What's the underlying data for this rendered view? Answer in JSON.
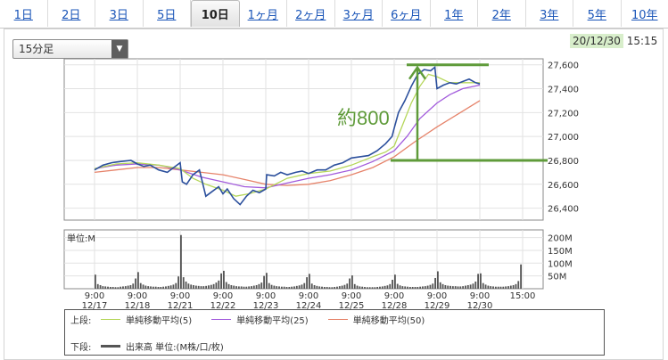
{
  "tabs": [
    {
      "label": "1日"
    },
    {
      "label": "2日"
    },
    {
      "label": "3日"
    },
    {
      "label": "5日"
    },
    {
      "label": "10日"
    },
    {
      "label": "1ヶ月"
    },
    {
      "label": "2ヶ月"
    },
    {
      "label": "3ヶ月"
    },
    {
      "label": "6ヶ月"
    },
    {
      "label": "1年"
    },
    {
      "label": "2年"
    },
    {
      "label": "3年"
    },
    {
      "label": "5年"
    },
    {
      "label": "10年"
    }
  ],
  "active_tab": "10日",
  "interval_select": {
    "value": "15分足"
  },
  "timestamp": {
    "date": "20/12/30",
    "time": "15:15"
  },
  "annotation": {
    "text": "約800",
    "level_low": 26800,
    "level_high": 27600
  },
  "colors": {
    "price": "#2b4f9c",
    "ma5": "#b5d65a",
    "ma25": "#a25bdc",
    "ma50": "#e6836a",
    "volume": "#555555",
    "annotation": "#5f9b3a"
  },
  "legend": {
    "upper_label": "上段:",
    "lower_label": "下段:",
    "items": [
      {
        "label": "単純移動平均(5)",
        "color": "#b5d65a"
      },
      {
        "label": "単純移動平均(25)",
        "color": "#a25bdc"
      },
      {
        "label": "単純移動平均(50)",
        "color": "#e6836a"
      }
    ],
    "volume_label": "出来高 単位:(M株/口/枚)"
  },
  "chart_data": [
    {
      "type": "line",
      "ylim": [
        26300,
        27650
      ],
      "y_ticks": [
        "26,400",
        "26,600",
        "26,800",
        "27,000",
        "27,200",
        "27,400",
        "27,600"
      ],
      "y_tick_values": [
        26400,
        26600,
        26800,
        27000,
        27200,
        27400,
        27600
      ],
      "series": [
        {
          "key": "price",
          "x": [
            0,
            0.2,
            0.4,
            0.6,
            0.85,
            1.0,
            1.15,
            1.3,
            1.5,
            1.7,
            1.85,
            2.0,
            2.05,
            2.15,
            2.3,
            2.45,
            2.6,
            2.75,
            2.9,
            3.0,
            3.1,
            3.25,
            3.4,
            3.55,
            3.7,
            3.85,
            4.0,
            4.02,
            4.2,
            4.35,
            4.5,
            4.7,
            4.85,
            5.0,
            5.2,
            5.4,
            5.6,
            5.8,
            6.0,
            6.2,
            6.4,
            6.6,
            6.8,
            6.95,
            7.0,
            7.1,
            7.25,
            7.4,
            7.55,
            7.7,
            7.85,
            7.95,
            8.0,
            8.15,
            8.3,
            8.45,
            8.6,
            8.75,
            8.9,
            9.0
          ],
          "values": [
            26720,
            26760,
            26780,
            26790,
            26800,
            26770,
            26750,
            26760,
            26720,
            26700,
            26740,
            26780,
            26620,
            26600,
            26680,
            26720,
            26500,
            26540,
            26580,
            26520,
            26560,
            26480,
            26430,
            26500,
            26550,
            26530,
            26560,
            26680,
            26670,
            26700,
            26680,
            26700,
            26710,
            26690,
            26720,
            26720,
            26760,
            26780,
            26820,
            26830,
            26840,
            26880,
            26940,
            27000,
            27070,
            27200,
            27300,
            27420,
            27520,
            27560,
            27550,
            27580,
            27400,
            27430,
            27450,
            27440,
            27460,
            27480,
            27450,
            27440
          ]
        },
        {
          "key": "ma5",
          "x": [
            0,
            0.5,
            1,
            1.5,
            2,
            2.3,
            2.6,
            3,
            3.3,
            3.6,
            4,
            4.5,
            5,
            5.5,
            6,
            6.5,
            6.8,
            7,
            7.2,
            7.4,
            7.6,
            7.8,
            8,
            8.3,
            8.6,
            9
          ],
          "values": [
            26730,
            26770,
            26780,
            26760,
            26730,
            26650,
            26600,
            26550,
            26500,
            26520,
            26560,
            26650,
            26690,
            26710,
            26760,
            26830,
            26870,
            26920,
            27100,
            27280,
            27420,
            27520,
            27500,
            27450,
            27450,
            27450
          ]
        },
        {
          "key": "ma25",
          "x": [
            0,
            0.5,
            1,
            1.5,
            2,
            2.5,
            3,
            3.5,
            4,
            4.5,
            5,
            5.5,
            6,
            6.5,
            7,
            7.3,
            7.6,
            8,
            8.3,
            8.6,
            9
          ],
          "values": [
            26730,
            26760,
            26770,
            26760,
            26720,
            26660,
            26620,
            26580,
            26570,
            26610,
            26650,
            26680,
            26720,
            26790,
            26880,
            27000,
            27150,
            27280,
            27350,
            27400,
            27430
          ]
        },
        {
          "key": "ma50",
          "x": [
            0,
            0.5,
            1,
            1.5,
            2,
            2.5,
            3,
            3.5,
            4,
            4.5,
            5,
            5.5,
            6,
            6.5,
            7,
            7.5,
            8,
            8.5,
            9
          ],
          "values": [
            26700,
            26720,
            26740,
            26740,
            26720,
            26700,
            26680,
            26640,
            26600,
            26590,
            26600,
            26630,
            26680,
            26740,
            26830,
            26960,
            27080,
            27190,
            27300
          ]
        }
      ]
    },
    {
      "type": "bar",
      "ylabel": "単位:M",
      "ylim": [
        0,
        230
      ],
      "y_ticks": [
        "50M",
        "100M",
        "150M",
        "200M"
      ],
      "y_tick_values": [
        50,
        100,
        150,
        200
      ],
      "x_ticks": [
        {
          "x": 0,
          "time": "9:00",
          "date": "12/17"
        },
        {
          "x": 1,
          "time": "9:00",
          "date": "12/18"
        },
        {
          "x": 2,
          "time": "9:00",
          "date": "12/21"
        },
        {
          "x": 3,
          "time": "9:00",
          "date": "12/22"
        },
        {
          "x": 4,
          "time": "9:00",
          "date": "12/23"
        },
        {
          "x": 5,
          "time": "9:00",
          "date": "12/24"
        },
        {
          "x": 6,
          "time": "9:00",
          "date": "12/25"
        },
        {
          "x": 7,
          "time": "9:00",
          "date": "12/28"
        },
        {
          "x": 8,
          "time": "9:00",
          "date": "12/29"
        },
        {
          "x": 9,
          "time": "9:00",
          "date": "12/30"
        },
        {
          "x": 10,
          "time": "15:00",
          "date": ""
        }
      ],
      "values": [
        55,
        18,
        14,
        10,
        9,
        8,
        7,
        7,
        6,
        6,
        8,
        9,
        10,
        12,
        14,
        20,
        40,
        65,
        22,
        16,
        12,
        10,
        9,
        8,
        8,
        7,
        7,
        8,
        9,
        11,
        13,
        16,
        22,
        48,
        210,
        45,
        28,
        20,
        16,
        14,
        12,
        11,
        10,
        10,
        11,
        13,
        15,
        18,
        24,
        32,
        60,
        70,
        26,
        18,
        14,
        12,
        10,
        9,
        9,
        8,
        8,
        9,
        10,
        12,
        14,
        18,
        24,
        50,
        62,
        22,
        15,
        12,
        10,
        9,
        8,
        8,
        7,
        7,
        8,
        9,
        11,
        13,
        16,
        22,
        45,
        58,
        20,
        14,
        11,
        9,
        8,
        7,
        7,
        6,
        6,
        7,
        8,
        10,
        12,
        15,
        20,
        40,
        52,
        18,
        12,
        9,
        8,
        7,
        6,
        6,
        6,
        6,
        7,
        8,
        9,
        11,
        13,
        18,
        35,
        55,
        19,
        13,
        10,
        9,
        8,
        7,
        7,
        7,
        7,
        8,
        9,
        10,
        12,
        15,
        20,
        42,
        68,
        25,
        18,
        14,
        12,
        11,
        10,
        10,
        9,
        9,
        10,
        12,
        14,
        16,
        20,
        28,
        58,
        60,
        22,
        16,
        12,
        10,
        9,
        8,
        8,
        8,
        8,
        9,
        10,
        12,
        14,
        18,
        30,
        95
      ]
    }
  ]
}
